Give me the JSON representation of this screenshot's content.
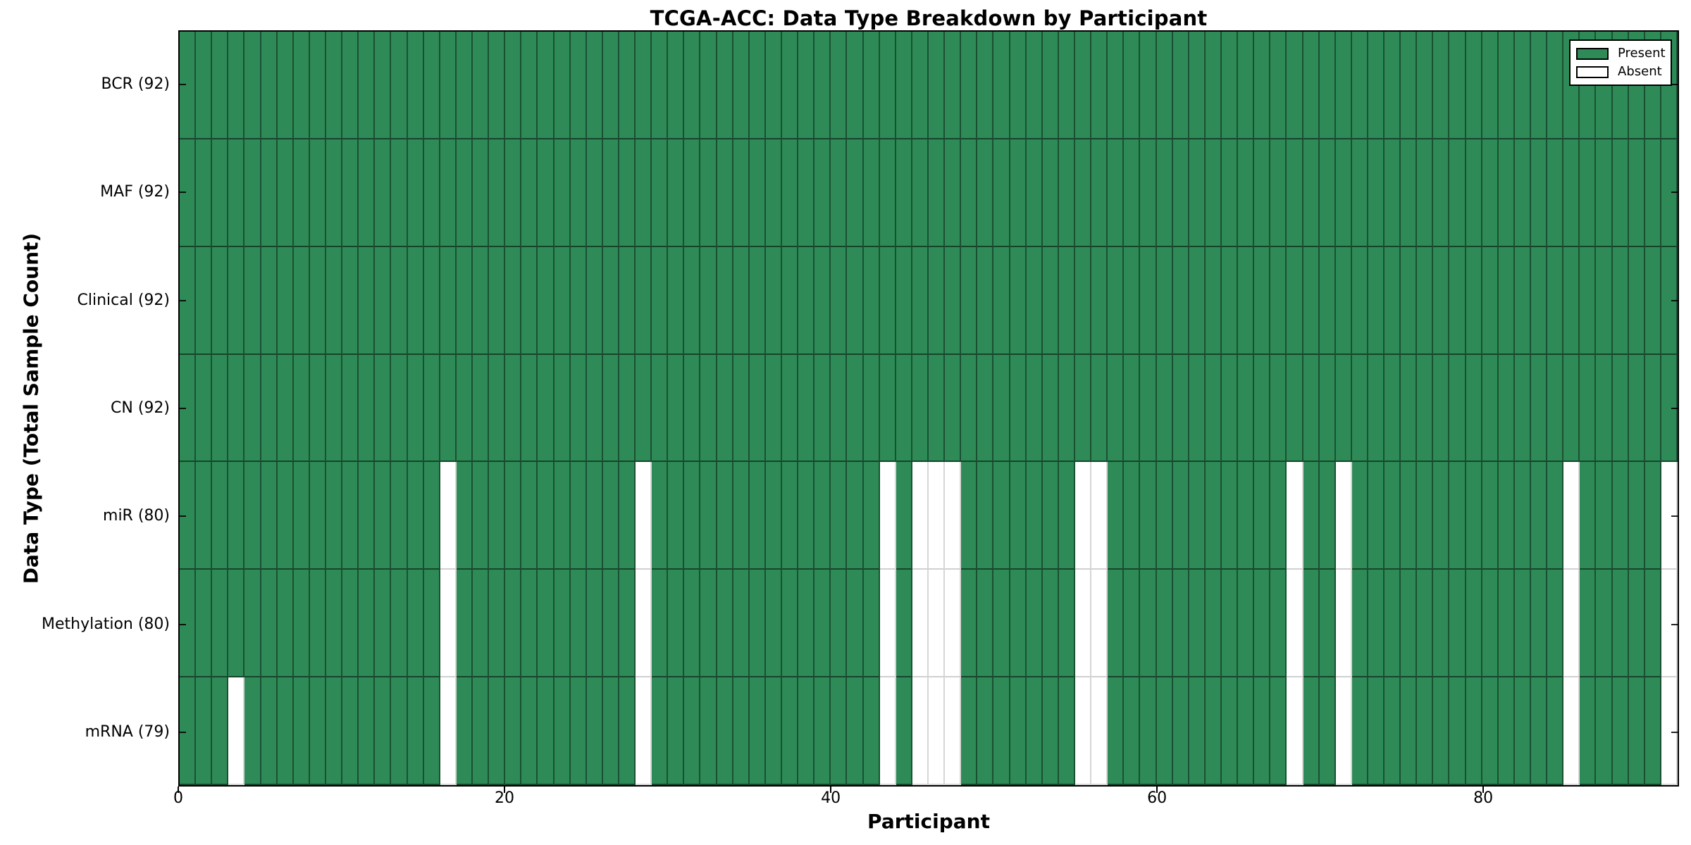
{
  "title": "TCGA-ACC: Data Type Breakdown by Participant",
  "axes": {
    "xlabel": "Participant",
    "ylabel": "Data Type (Total Sample Count)"
  },
  "legend": {
    "items": [
      {
        "label": "Present",
        "color": "#2e8b57"
      },
      {
        "label": "Absent",
        "color": "#ffffff"
      }
    ]
  },
  "chart_data": {
    "type": "heatmap",
    "title": "TCGA-ACC: Data Type Breakdown by Participant",
    "xlabel": "Participant",
    "ylabel": "Data Type (Total Sample Count)",
    "n_participants": 92,
    "x_axis": {
      "min": 0,
      "max": 92,
      "ticks": [
        0,
        20,
        40,
        60,
        80
      ]
    },
    "colors": {
      "present": "#2e8b57",
      "absent": "#ffffff",
      "grid_on_green": "rgba(0,0,0,0.45)",
      "grid_on_white": "rgba(0,0,0,0.17)"
    },
    "legend_position": "upper right",
    "rows": [
      {
        "label": "BCR (92)",
        "name": "BCR",
        "present_count": 92,
        "missing_participants": []
      },
      {
        "label": "MAF (92)",
        "name": "MAF",
        "present_count": 92,
        "missing_participants": []
      },
      {
        "label": "Clinical (92)",
        "name": "Clinical",
        "present_count": 92,
        "missing_participants": []
      },
      {
        "label": "CN (92)",
        "name": "CN",
        "present_count": 92,
        "missing_participants": []
      },
      {
        "label": "miR (80)",
        "name": "miR",
        "present_count": 80,
        "missing_participants": [
          16,
          28,
          43,
          45,
          46,
          47,
          55,
          56,
          68,
          71,
          85,
          91
        ]
      },
      {
        "label": "Methylation (80)",
        "name": "Methylation",
        "present_count": 80,
        "missing_participants": [
          16,
          28,
          43,
          45,
          46,
          47,
          55,
          56,
          68,
          71,
          85,
          91
        ]
      },
      {
        "label": "mRNA (79)",
        "name": "mRNA",
        "present_count": 79,
        "missing_participants": [
          3,
          16,
          28,
          43,
          45,
          46,
          47,
          55,
          56,
          68,
          71,
          85,
          91
        ]
      }
    ]
  }
}
